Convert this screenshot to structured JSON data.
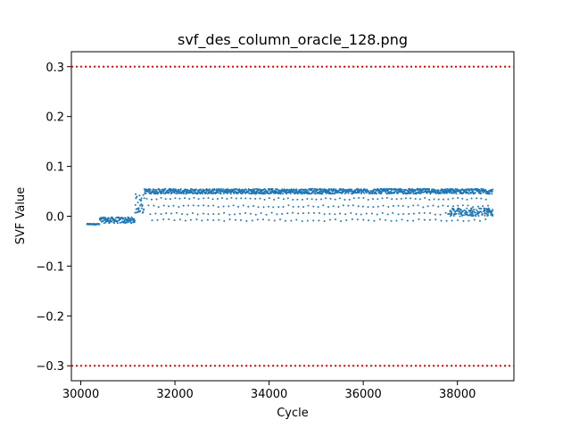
{
  "chart_data": {
    "type": "scatter",
    "title": "svf_des_column_oracle_128.png",
    "xlabel": "Cycle",
    "ylabel": "SVF Value",
    "xlim": [
      29800,
      39200
    ],
    "ylim": [
      -0.33,
      0.33
    ],
    "x_ticks": [
      30000,
      32000,
      34000,
      36000,
      38000
    ],
    "x_tick_labels": [
      "30000",
      "32000",
      "34000",
      "36000",
      "38000"
    ],
    "y_ticks": [
      0.3,
      0.2,
      0.1,
      0.0,
      -0.1,
      -0.2,
      -0.3
    ],
    "y_tick_labels": [
      "0.3",
      "0.2",
      "0.1",
      "0.0",
      "−0.1",
      "−0.2",
      "−0.3"
    ],
    "grid": false,
    "point_color": "#1f77b4",
    "threshold_color": "#ff0000",
    "thresholds": [
      0.3,
      -0.3
    ],
    "segments": [
      {
        "x_start": 30130,
        "x_end": 30400,
        "y": -0.016,
        "spread": 0.001
      },
      {
        "x_start": 30400,
        "x_end": 31150,
        "y": -0.008,
        "spread": 0.006
      },
      {
        "x_start": 31150,
        "x_end": 31350,
        "y": 0.025,
        "spread": 0.02
      },
      {
        "x_start": 31350,
        "x_end": 38750,
        "y": 0.05,
        "spread": 0.005
      }
    ],
    "sparse_levels": [
      0.035,
      0.02,
      0.005,
      -0.008
    ],
    "sparse_x_range": [
      31400,
      38700
    ],
    "dip_region": {
      "x_start": 37800,
      "x_end": 38750,
      "y": 0.008,
      "spread": 0.008
    }
  }
}
